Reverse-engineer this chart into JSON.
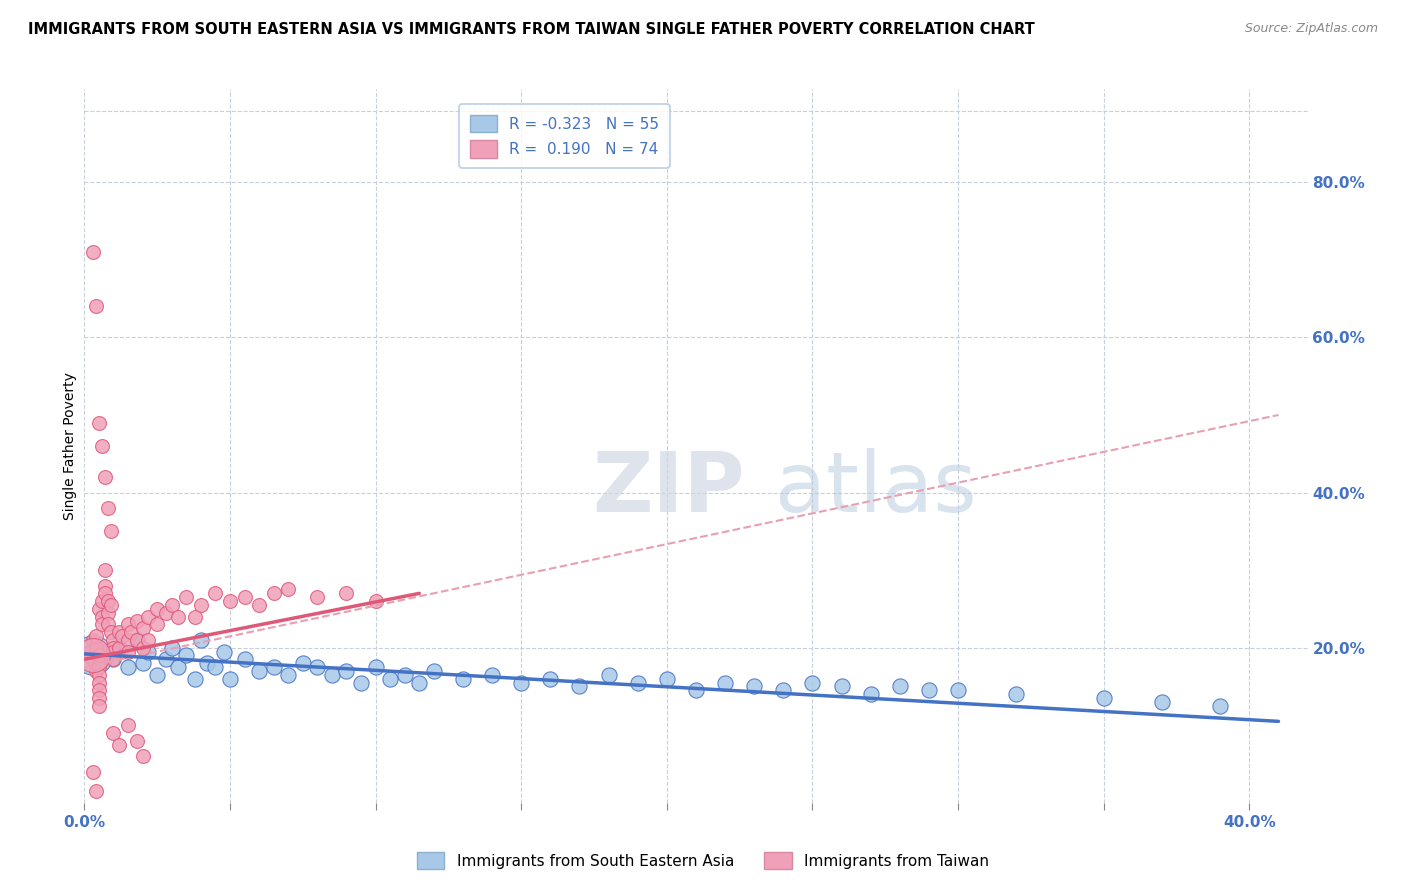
{
  "title": "IMMIGRANTS FROM SOUTH EASTERN ASIA VS IMMIGRANTS FROM TAIWAN SINGLE FATHER POVERTY CORRELATION CHART",
  "source": "Source: ZipAtlas.com",
  "ylabel": "Single Father Poverty",
  "right_yticks": [
    "80.0%",
    "60.0%",
    "40.0%",
    "20.0%"
  ],
  "right_ytick_vals": [
    0.8,
    0.6,
    0.4,
    0.2
  ],
  "legend1_label": "R = -0.323   N = 55",
  "legend2_label": "R =  0.190   N = 74",
  "legend3_label": "Immigrants from South Eastern Asia",
  "legend4_label": "Immigrants from Taiwan",
  "color_blue": "#a8c8e8",
  "color_pink": "#f0a0b8",
  "line_blue": "#4472c4",
  "line_pink": "#e05878",
  "line_dashed": "#e8a0b0",
  "watermark_zip": "ZIP",
  "watermark_atlas": "atlas",
  "xlim": [
    0.0,
    0.42
  ],
  "ylim": [
    0.0,
    0.92
  ],
  "blue_scatter_x": [
    0.005,
    0.008,
    0.01,
    0.012,
    0.015,
    0.018,
    0.02,
    0.022,
    0.025,
    0.028,
    0.03,
    0.032,
    0.035,
    0.038,
    0.04,
    0.042,
    0.045,
    0.048,
    0.05,
    0.055,
    0.06,
    0.065,
    0.07,
    0.075,
    0.08,
    0.085,
    0.09,
    0.095,
    0.1,
    0.105,
    0.11,
    0.115,
    0.12,
    0.13,
    0.14,
    0.15,
    0.16,
    0.17,
    0.18,
    0.19,
    0.2,
    0.21,
    0.22,
    0.23,
    0.24,
    0.25,
    0.26,
    0.27,
    0.28,
    0.29,
    0.3,
    0.32,
    0.35,
    0.37,
    0.39
  ],
  "blue_scatter_y": [
    0.19,
    0.195,
    0.185,
    0.2,
    0.175,
    0.21,
    0.18,
    0.195,
    0.165,
    0.185,
    0.2,
    0.175,
    0.19,
    0.16,
    0.21,
    0.18,
    0.175,
    0.195,
    0.16,
    0.185,
    0.17,
    0.175,
    0.165,
    0.18,
    0.175,
    0.165,
    0.17,
    0.155,
    0.175,
    0.16,
    0.165,
    0.155,
    0.17,
    0.16,
    0.165,
    0.155,
    0.16,
    0.15,
    0.165,
    0.155,
    0.16,
    0.145,
    0.155,
    0.15,
    0.145,
    0.155,
    0.15,
    0.14,
    0.15,
    0.145,
    0.145,
    0.14,
    0.135,
    0.13,
    0.125
  ],
  "pink_scatter_x": [
    0.002,
    0.003,
    0.003,
    0.004,
    0.004,
    0.004,
    0.005,
    0.005,
    0.005,
    0.005,
    0.005,
    0.005,
    0.005,
    0.005,
    0.005,
    0.006,
    0.006,
    0.006,
    0.007,
    0.007,
    0.007,
    0.008,
    0.008,
    0.008,
    0.009,
    0.009,
    0.01,
    0.01,
    0.01,
    0.01,
    0.012,
    0.012,
    0.013,
    0.015,
    0.015,
    0.015,
    0.016,
    0.018,
    0.018,
    0.02,
    0.02,
    0.022,
    0.022,
    0.025,
    0.025,
    0.028,
    0.03,
    0.032,
    0.035,
    0.038,
    0.04,
    0.045,
    0.05,
    0.055,
    0.06,
    0.065,
    0.07,
    0.08,
    0.09,
    0.1,
    0.003,
    0.004,
    0.005,
    0.006,
    0.007,
    0.008,
    0.009,
    0.01,
    0.012,
    0.015,
    0.018,
    0.02,
    0.003,
    0.004
  ],
  "pink_scatter_y": [
    0.195,
    0.185,
    0.21,
    0.17,
    0.2,
    0.215,
    0.18,
    0.175,
    0.19,
    0.165,
    0.155,
    0.145,
    0.135,
    0.125,
    0.25,
    0.24,
    0.23,
    0.26,
    0.28,
    0.3,
    0.27,
    0.26,
    0.245,
    0.23,
    0.255,
    0.22,
    0.21,
    0.2,
    0.195,
    0.185,
    0.22,
    0.2,
    0.215,
    0.23,
    0.21,
    0.195,
    0.22,
    0.235,
    0.21,
    0.225,
    0.2,
    0.24,
    0.21,
    0.25,
    0.23,
    0.245,
    0.255,
    0.24,
    0.265,
    0.24,
    0.255,
    0.27,
    0.26,
    0.265,
    0.255,
    0.27,
    0.275,
    0.265,
    0.27,
    0.26,
    0.71,
    0.64,
    0.49,
    0.46,
    0.42,
    0.38,
    0.35,
    0.09,
    0.075,
    0.1,
    0.08,
    0.06,
    0.04,
    0.015
  ],
  "pink_large_x": [
    0.003
  ],
  "pink_large_y": [
    0.19
  ],
  "pink_large_size": [
    600
  ],
  "blue_large_x": [
    0.003
  ],
  "blue_large_y": [
    0.19
  ],
  "blue_large_size": [
    800
  ],
  "blue_trend_x": [
    0.0,
    0.41
  ],
  "blue_trend_y": [
    0.192,
    0.105
  ],
  "pink_trend_x": [
    0.0,
    0.115
  ],
  "pink_trend_y": [
    0.185,
    0.27
  ],
  "dashed_trend_x": [
    0.0,
    0.41
  ],
  "dashed_trend_y": [
    0.175,
    0.5
  ]
}
